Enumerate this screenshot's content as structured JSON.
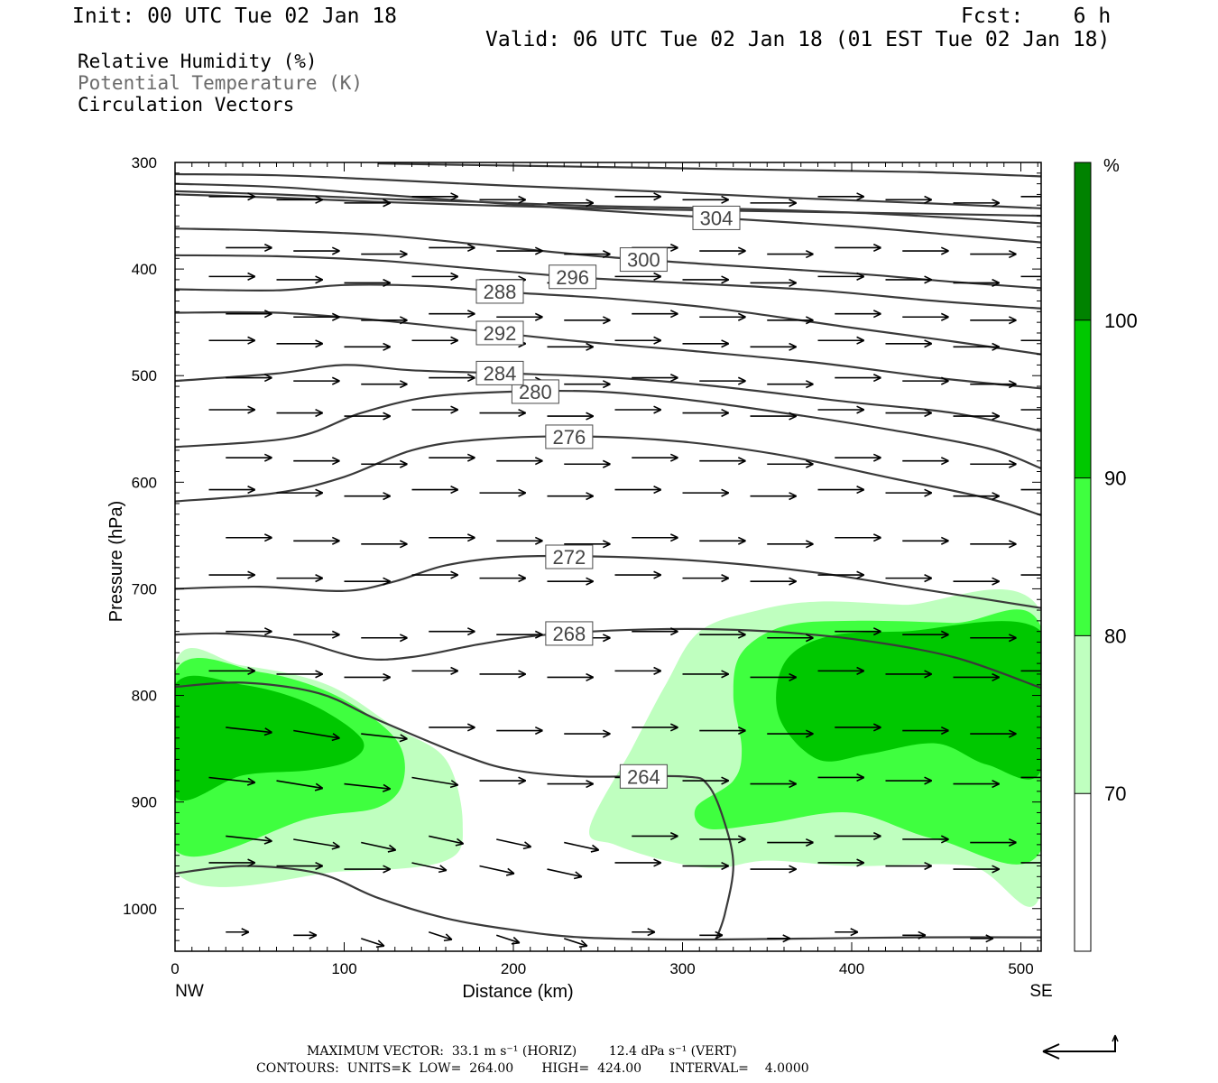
{
  "header": {
    "init": "Init: 00 UTC Tue 02 Jan 18",
    "fcst": "Fcst:    6 h",
    "valid": "Valid: 06 UTC Tue 02 Jan 18 (01 EST Tue 02 Jan 18)",
    "fields": [
      "Relative Humidity (%)",
      "Potential Temperature (K)",
      "Circulation Vectors"
    ]
  },
  "footer": {
    "max_vector": "MAXIMUM VECTOR:  33.1 m s⁻¹ (HORIZ)        12.4 dPa s⁻¹ (VERT)",
    "contours": "CONTOURS:  UNITS=K  LOW=  264.00       HIGH=  424.00       INTERVAL=    4.0000"
  },
  "colorbar": {
    "unit": "%",
    "levels": [
      70,
      80,
      90,
      100
    ],
    "colors": [
      "#ffffff",
      "#bfffbf",
      "#3fff3f",
      "#00c800",
      "#008200"
    ]
  },
  "chart_data": {
    "type": "cross-section",
    "xlabel": "Distance (km)",
    "ylabel": "Pressure (hPa)",
    "xlim": [
      0,
      512
    ],
    "ylim": [
      1040,
      300
    ],
    "x_ticks": [
      0,
      100,
      200,
      300,
      400,
      500
    ],
    "y_ticks": [
      300,
      400,
      500,
      600,
      700,
      800,
      900,
      1000
    ],
    "x_end_labels": {
      "left": "NW",
      "right": "SE"
    },
    "rh_regions": [
      {
        "level": 70,
        "points": [
          [
            0,
            770
          ],
          [
            40,
            772
          ],
          [
            90,
            790
          ],
          [
            130,
            830
          ],
          [
            160,
            860
          ],
          [
            170,
            920
          ],
          [
            160,
            955
          ],
          [
            100,
            965
          ],
          [
            0,
            965
          ]
        ]
      },
      {
        "level": 70,
        "points": [
          [
            245,
            925
          ],
          [
            270,
            850
          ],
          [
            290,
            790
          ],
          [
            310,
            740
          ],
          [
            345,
            720
          ],
          [
            380,
            712
          ],
          [
            430,
            715
          ],
          [
            512,
            722
          ],
          [
            512,
            985
          ],
          [
            470,
            960
          ],
          [
            400,
            960
          ],
          [
            350,
            955
          ],
          [
            320,
            962
          ],
          [
            290,
            955
          ],
          [
            260,
            940
          ]
        ]
      },
      {
        "level": 80,
        "points": [
          [
            0,
            778
          ],
          [
            50,
            778
          ],
          [
            95,
            800
          ],
          [
            130,
            840
          ],
          [
            135,
            880
          ],
          [
            120,
            905
          ],
          [
            80,
            915
          ],
          [
            0,
            945
          ]
        ]
      },
      {
        "level": 80,
        "points": [
          [
            308,
            905
          ],
          [
            330,
            880
          ],
          [
            335,
            850
          ],
          [
            330,
            800
          ],
          [
            335,
            760
          ],
          [
            360,
            735
          ],
          [
            400,
            730
          ],
          [
            460,
            732
          ],
          [
            512,
            736
          ],
          [
            512,
            945
          ],
          [
            450,
            935
          ],
          [
            400,
            910
          ],
          [
            350,
            920
          ],
          [
            315,
            925
          ]
        ]
      },
      {
        "level": 90,
        "points": [
          [
            0,
            790
          ],
          [
            40,
            790
          ],
          [
            80,
            808
          ],
          [
            110,
            840
          ],
          [
            105,
            860
          ],
          [
            80,
            870
          ],
          [
            40,
            875
          ],
          [
            0,
            895
          ]
        ]
      },
      {
        "level": 90,
        "points": [
          [
            357,
            820
          ],
          [
            360,
            770
          ],
          [
            385,
            745
          ],
          [
            430,
            740
          ],
          [
            512,
            740
          ],
          [
            512,
            870
          ],
          [
            480,
            865
          ],
          [
            450,
            845
          ],
          [
            410,
            855
          ],
          [
            380,
            860
          ]
        ]
      }
    ],
    "theta_contours": [
      {
        "value": 264,
        "label_x": 277,
        "points": [
          [
            0,
            792
          ],
          [
            40,
            788
          ],
          [
            85,
            798
          ],
          [
            120,
            823
          ],
          [
            170,
            856
          ],
          [
            200,
            870
          ],
          [
            240,
            876
          ],
          [
            300,
            876
          ],
          [
            315,
            884
          ],
          [
            325,
            920
          ],
          [
            330,
            960
          ],
          [
            325,
            1005
          ],
          [
            320,
            1028
          ]
        ]
      },
      {
        "value": 268,
        "label_x": 233,
        "points": [
          [
            0,
            743
          ],
          [
            30,
            742
          ],
          [
            70,
            748
          ],
          [
            110,
            765
          ],
          [
            140,
            764
          ],
          [
            180,
            752
          ],
          [
            220,
            743
          ],
          [
            280,
            738
          ],
          [
            340,
            739
          ],
          [
            400,
            747
          ],
          [
            460,
            764
          ],
          [
            512,
            793
          ]
        ]
      },
      {
        "value": 272,
        "label_x": 233,
        "points": [
          [
            0,
            700
          ],
          [
            50,
            698
          ],
          [
            100,
            702
          ],
          [
            130,
            693
          ],
          [
            160,
            678
          ],
          [
            200,
            670
          ],
          [
            260,
            670
          ],
          [
            320,
            675
          ],
          [
            380,
            685
          ],
          [
            440,
            700
          ],
          [
            512,
            718
          ]
        ]
      },
      {
        "value": 276,
        "label_x": 233,
        "points": [
          [
            0,
            618
          ],
          [
            60,
            610
          ],
          [
            100,
            595
          ],
          [
            140,
            570
          ],
          [
            180,
            560
          ],
          [
            240,
            557
          ],
          [
            300,
            562
          ],
          [
            360,
            575
          ],
          [
            420,
            595
          ],
          [
            480,
            615
          ],
          [
            512,
            631
          ]
        ]
      },
      {
        "value": 280,
        "label_x": 213,
        "points": [
          [
            0,
            567
          ],
          [
            70,
            558
          ],
          [
            110,
            535
          ],
          [
            150,
            520
          ],
          [
            200,
            515
          ],
          [
            250,
            515
          ],
          [
            300,
            522
          ],
          [
            360,
            535
          ],
          [
            420,
            550
          ],
          [
            480,
            568
          ],
          [
            512,
            587
          ]
        ]
      },
      {
        "value": 284,
        "label_x": 192,
        "points": [
          [
            0,
            505
          ],
          [
            60,
            498
          ],
          [
            100,
            490
          ],
          [
            140,
            495
          ],
          [
            200,
            498
          ],
          [
            260,
            502
          ],
          [
            320,
            510
          ],
          [
            400,
            525
          ],
          [
            460,
            535
          ],
          [
            512,
            552
          ]
        ]
      },
      {
        "value": 288,
        "label_x": 192,
        "points": [
          [
            0,
            419
          ],
          [
            60,
            420
          ],
          [
            100,
            415
          ],
          [
            150,
            416
          ],
          [
            200,
            422
          ],
          [
            260,
            428
          ],
          [
            320,
            437
          ],
          [
            400,
            455
          ],
          [
            460,
            468
          ],
          [
            512,
            480
          ]
        ]
      },
      {
        "value": 292,
        "label_x": 192,
        "points": [
          [
            0,
            441
          ],
          [
            60,
            441
          ],
          [
            120,
            448
          ],
          [
            180,
            458
          ],
          [
            240,
            468
          ],
          [
            300,
            476
          ],
          [
            380,
            488
          ],
          [
            450,
            502
          ],
          [
            512,
            512
          ]
        ]
      },
      {
        "value": 296,
        "label_x": 235,
        "points": [
          [
            0,
            387
          ],
          [
            60,
            388
          ],
          [
            120,
            392
          ],
          [
            180,
            400
          ],
          [
            240,
            408
          ],
          [
            300,
            413
          ],
          [
            380,
            420
          ],
          [
            450,
            430
          ],
          [
            512,
            437
          ]
        ]
      },
      {
        "value": 300,
        "label_x": 277,
        "points": [
          [
            0,
            362
          ],
          [
            60,
            364
          ],
          [
            120,
            368
          ],
          [
            180,
            377
          ],
          [
            250,
            388
          ],
          [
            320,
            396
          ],
          [
            400,
            404
          ],
          [
            460,
            412
          ],
          [
            512,
            418
          ]
        ]
      },
      {
        "value": 304,
        "label_x": 320,
        "points": [
          [
            0,
            320
          ],
          [
            60,
            323
          ],
          [
            120,
            330
          ],
          [
            180,
            337
          ],
          [
            250,
            345
          ],
          [
            320,
            352
          ],
          [
            400,
            360
          ],
          [
            460,
            368
          ],
          [
            512,
            375
          ]
        ]
      },
      {
        "value": null,
        "label_x": null,
        "points": [
          [
            0,
            327
          ],
          [
            60,
            330
          ],
          [
            120,
            334
          ],
          [
            180,
            337
          ],
          [
            250,
            341
          ],
          [
            320,
            343
          ],
          [
            400,
            347
          ],
          [
            460,
            352
          ],
          [
            512,
            357
          ]
        ]
      },
      {
        "value": null,
        "label_x": null,
        "points": [
          [
            0,
            330
          ],
          [
            60,
            333
          ],
          [
            120,
            337
          ],
          [
            200,
            341
          ],
          [
            280,
            344
          ],
          [
            360,
            346
          ],
          [
            440,
            348
          ],
          [
            512,
            350
          ]
        ]
      },
      {
        "value": null,
        "label_x": null,
        "points": [
          [
            0,
            311
          ],
          [
            60,
            312
          ],
          [
            120,
            316
          ],
          [
            200,
            322
          ],
          [
            280,
            327
          ],
          [
            360,
            333
          ],
          [
            440,
            338
          ],
          [
            512,
            343
          ]
        ]
      },
      {
        "value": null,
        "label_x": null,
        "points": [
          [
            120,
            301
          ],
          [
            200,
            303
          ],
          [
            280,
            305
          ],
          [
            360,
            307
          ],
          [
            440,
            309
          ],
          [
            512,
            313
          ]
        ]
      },
      {
        "value": null,
        "label_x": null,
        "points": [
          [
            0,
            967
          ],
          [
            40,
            960
          ],
          [
            85,
            967
          ],
          [
            120,
            990
          ],
          [
            160,
            1009
          ],
          [
            200,
            1020
          ],
          [
            240,
            1027
          ],
          [
            300,
            1029
          ],
          [
            380,
            1028
          ],
          [
            440,
            1027
          ],
          [
            512,
            1027
          ]
        ]
      }
    ],
    "vectors_note": "circulation vectors on regular grid"
  }
}
